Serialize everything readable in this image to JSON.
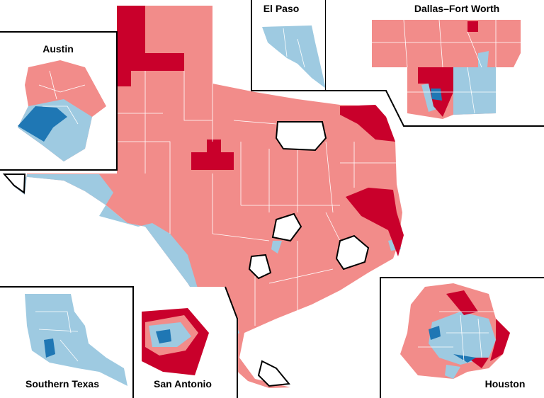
{
  "insets": [
    {
      "label": "Austin"
    },
    {
      "label": "El Paso"
    },
    {
      "label": "Dallas–Fort Worth"
    },
    {
      "label": "Southern Texas"
    },
    {
      "label": "San Antonio"
    },
    {
      "label": "Houston"
    }
  ]
}
